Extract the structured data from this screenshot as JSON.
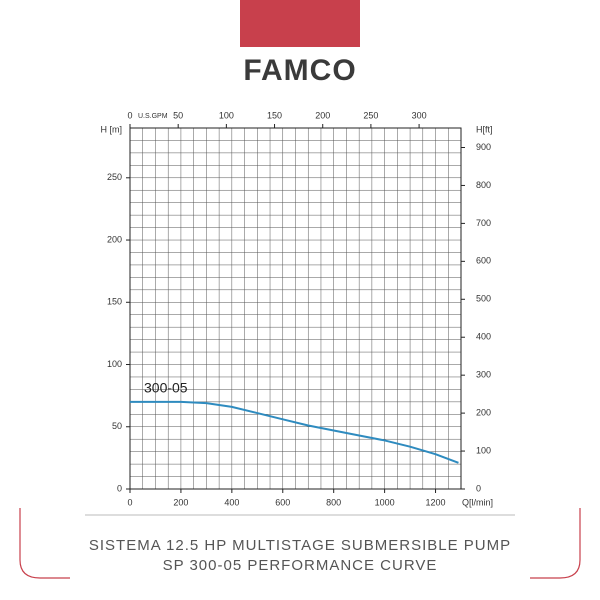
{
  "logo": "FAMCO",
  "chart_data": {
    "type": "line",
    "x_label": "Q[l/min]",
    "y_label": "H [m]",
    "y2_label": "H[ft]",
    "x2_label": "U.S.GPM",
    "x": [
      0,
      100,
      200,
      300,
      400,
      500,
      600,
      700,
      800,
      900,
      1000,
      1100,
      1200,
      1290
    ],
    "series": [
      {
        "name": "300-05",
        "color": "#2e8bbf",
        "values": [
          70,
          70,
          70,
          69,
          66,
          61,
          56,
          51,
          47,
          43,
          39,
          34,
          28,
          21
        ]
      }
    ],
    "xlim": [
      0,
      1300
    ],
    "xticks": [
      0,
      200,
      400,
      600,
      800,
      1000,
      1200
    ],
    "ylim": [
      0,
      290
    ],
    "yticks": [
      0,
      50,
      100,
      150,
      200,
      250
    ],
    "y2lim": [
      0,
      951.4
    ],
    "y2ticks": [
      0,
      100,
      200,
      300,
      400,
      500,
      600,
      700,
      800,
      900
    ],
    "x2lim": [
      0,
      343.5
    ],
    "x2ticks": [
      0,
      50,
      100,
      150,
      200,
      250,
      300
    ],
    "grid": true
  },
  "caption": {
    "line1": "SISTEMA 12.5 HP MULTISTAGE SUBMERSIBLE PUMP",
    "line2": "SP 300-05 PERFORMANCE CURVE"
  }
}
